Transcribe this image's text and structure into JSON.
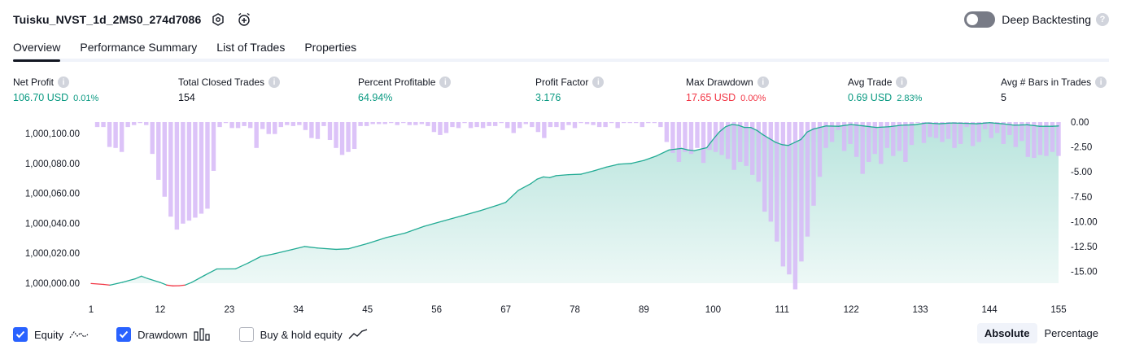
{
  "header": {
    "title": "Tuisku_NVST_1d_2MS0_274d7086",
    "deep_backtesting_label": "Deep Backtesting",
    "deep_backtesting_on": false
  },
  "tabs": [
    {
      "label": "Overview",
      "active": true
    },
    {
      "label": "Performance Summary",
      "active": false
    },
    {
      "label": "List of Trades",
      "active": false
    },
    {
      "label": "Properties",
      "active": false
    }
  ],
  "metrics": [
    {
      "label": "Net Profit",
      "value": "106.70 USD",
      "pct": "0.01%",
      "color": "green"
    },
    {
      "label": "Total Closed Trades",
      "value": "154",
      "pct": "",
      "color": "dark"
    },
    {
      "label": "Percent Profitable",
      "value": "64.94%",
      "pct": "",
      "color": "green"
    },
    {
      "label": "Profit Factor",
      "value": "3.176",
      "pct": "",
      "color": "green"
    },
    {
      "label": "Max Drawdown",
      "value": "17.65 USD",
      "pct": "0.00%",
      "color": "red"
    },
    {
      "label": "Avg Trade",
      "value": "0.69 USD",
      "pct": "2.83%",
      "color": "green"
    },
    {
      "label": "Avg # Bars in Trades",
      "value": "5",
      "pct": "",
      "color": "dark"
    }
  ],
  "legend": {
    "equity_label": "Equity",
    "equity_checked": true,
    "drawdown_label": "Drawdown",
    "drawdown_checked": true,
    "buyhold_label": "Buy & hold equity",
    "buyhold_checked": false
  },
  "mode": {
    "absolute_label": "Absolute",
    "percentage_label": "Percentage",
    "selected": "Absolute"
  },
  "colors": {
    "equity_line": "#22ab94",
    "equity_negative": "#f23645",
    "drawdown_bar": "#d6b8f7",
    "checkbox": "#2962ff"
  },
  "chart_data": {
    "type": "area",
    "x_ticks": [
      1,
      12,
      23,
      34,
      45,
      56,
      67,
      78,
      89,
      100,
      111,
      122,
      133,
      144,
      155
    ],
    "left_axis": {
      "ticks": [
        "1,000,000.00",
        "1,000,020.00",
        "1,000,040.00",
        "1,000,060.00",
        "1,000,080.00",
        "1,000,100.00"
      ],
      "ylim": [
        999999,
        1000110
      ]
    },
    "right_axis": {
      "ticks": [
        "0.00",
        "-2.50",
        "-5.00",
        "-7.50",
        "-10.00",
        "-12.50",
        "-15.00"
      ],
      "ylim": [
        -17,
        0
      ]
    },
    "series": [
      {
        "name": "Equity",
        "kind": "line-area",
        "points": [
          [
            1,
            999999.8
          ],
          [
            3,
            999999.2
          ],
          [
            4,
            999998.7
          ],
          [
            6,
            1000000.6
          ],
          [
            8,
            1000002.9
          ],
          [
            9,
            1000004.7
          ],
          [
            10,
            1000003.1
          ],
          [
            12,
            1000000.5
          ],
          [
            13,
            999998.8
          ],
          [
            14,
            999998.2
          ],
          [
            15,
            999998.3
          ],
          [
            16,
            999998.8
          ],
          [
            17,
            1000000.5
          ],
          [
            19,
            1000005.1
          ],
          [
            21,
            1000009.5
          ],
          [
            24,
            1000009.6
          ],
          [
            26,
            1000013.5
          ],
          [
            28,
            1000017.8
          ],
          [
            30,
            1000019.5
          ],
          [
            33,
            1000022.5
          ],
          [
            35,
            1000024.5
          ],
          [
            37,
            1000023.5
          ],
          [
            40,
            1000022.6
          ],
          [
            42,
            1000023.0
          ],
          [
            45,
            1000026.5
          ],
          [
            48,
            1000030.5
          ],
          [
            51,
            1000033.5
          ],
          [
            54,
            1000038.0
          ],
          [
            57,
            1000041.5
          ],
          [
            60,
            1000045.0
          ],
          [
            63,
            1000048.5
          ],
          [
            66,
            1000052.5
          ],
          [
            67,
            1000054.0
          ],
          [
            69,
            1000062.0
          ],
          [
            71,
            1000066.5
          ],
          [
            72,
            1000069.5
          ],
          [
            73,
            1000071.0
          ],
          [
            74,
            1000070.5
          ],
          [
            75,
            1000071.8
          ],
          [
            77,
            1000072.5
          ],
          [
            79,
            1000072.8
          ],
          [
            81,
            1000075.0
          ],
          [
            83,
            1000077.5
          ],
          [
            85,
            1000079.5
          ],
          [
            87,
            1000080.0
          ],
          [
            89,
            1000082.0
          ],
          [
            91,
            1000085.0
          ],
          [
            93,
            1000089.0
          ],
          [
            95,
            1000090.0
          ],
          [
            96,
            1000089.0
          ],
          [
            97,
            1000088.5
          ],
          [
            99,
            1000090.5
          ],
          [
            100,
            1000096.0
          ],
          [
            101,
            1000101.0
          ],
          [
            102,
            1000104.5
          ],
          [
            103,
            1000106.0
          ],
          [
            104,
            1000105.5
          ],
          [
            105,
            1000104.0
          ],
          [
            106,
            1000104.0
          ],
          [
            107,
            1000102.0
          ],
          [
            108,
            1000099.0
          ],
          [
            109,
            1000096.5
          ],
          [
            110,
            1000094.0
          ],
          [
            111,
            1000092.5
          ],
          [
            112,
            1000092.0
          ],
          [
            113,
            1000094.0
          ],
          [
            114,
            1000096.0
          ],
          [
            115,
            1000101.0
          ],
          [
            116,
            1000103.0
          ],
          [
            118,
            1000105.0
          ],
          [
            120,
            1000104.8
          ],
          [
            122,
            1000106.0
          ],
          [
            124,
            1000105.0
          ],
          [
            126,
            1000104.0
          ],
          [
            128,
            1000104.5
          ],
          [
            130,
            1000105.5
          ],
          [
            132,
            1000105.8
          ],
          [
            134,
            1000107.0
          ],
          [
            136,
            1000106.5
          ],
          [
            138,
            1000107.0
          ],
          [
            140,
            1000106.8
          ],
          [
            142,
            1000106.5
          ],
          [
            144,
            1000107.2
          ],
          [
            146,
            1000106.5
          ],
          [
            148,
            1000105.5
          ],
          [
            150,
            1000105.8
          ],
          [
            152,
            1000104.8
          ],
          [
            154,
            1000104.8
          ],
          [
            155,
            1000105.0
          ]
        ]
      },
      {
        "name": "Drawdown",
        "kind": "bar",
        "values": [
          0,
          -0.5,
          -0.5,
          -2.5,
          -2.6,
          -3.0,
          -0.5,
          -0.3,
          -0.1,
          -0.3,
          -3.2,
          -5.8,
          -7.5,
          -9.5,
          -10.8,
          -10.2,
          -9.9,
          -9.6,
          -9.2,
          -8.7,
          -4.9,
          -0.5,
          -0.1,
          -0.6,
          -0.6,
          -0.4,
          -0.6,
          -2.6,
          -0.7,
          -1.2,
          -1.2,
          -0.5,
          -0.3,
          -0.4,
          -0.3,
          -0.8,
          -1.6,
          -1.7,
          -0.4,
          -1.8,
          -2.6,
          -3.3,
          -3.0,
          -2.7,
          -0.4,
          -0.4,
          -0.2,
          -0.2,
          -0.2,
          -0.1,
          -0.3,
          -0.1,
          -0.3,
          -0.3,
          -0.2,
          -0.4,
          -1.0,
          -1.3,
          -1.1,
          -0.5,
          -0.6,
          -0.1,
          -0.6,
          -0.5,
          -0.6,
          -0.4,
          -0.4,
          -0.1,
          -0.6,
          -1.1,
          -0.6,
          -0.2,
          -0.5,
          -1.0,
          -1.6,
          -0.5,
          -0.5,
          -0.8,
          -0.3,
          -0.6,
          -0.1,
          -0.2,
          -0.3,
          -0.5,
          -0.5,
          -0.1,
          -0.6,
          -0.1,
          -0.1,
          -0.1,
          -0.5,
          -0.1,
          -0.1,
          -0.5,
          -2.0,
          -3.1,
          -4.0,
          -3.0,
          -3.2,
          -2.6,
          -4.1,
          -2.8,
          -3.0,
          -3.3,
          -3.7,
          -4.8,
          -4.0,
          -4.4,
          -5.3,
          -6.0,
          -9.0,
          -10.0,
          -12.0,
          -14.5,
          -15.3,
          -16.8,
          -14.0,
          -11.5,
          -8.4,
          -5.5,
          -2.6,
          -2.0,
          -0.8,
          -2.9,
          -2.2,
          -3.5,
          -5.2,
          -4.0,
          -3.2,
          -4.2,
          -2.6,
          -3.4,
          -2.9,
          -4.0,
          -2.3,
          -0.1,
          -2.1,
          -1.5,
          -1.6,
          -2.0,
          -1.7,
          -2.6,
          -2.2,
          -0.5,
          -2.4,
          -2.0,
          -0.7,
          -1.6,
          -1.1,
          -2.2,
          -1.3,
          -2.5,
          -1.9,
          -3.5,
          -3.6,
          -3.3,
          -3.4,
          -3.0,
          -3.4
        ]
      }
    ]
  }
}
